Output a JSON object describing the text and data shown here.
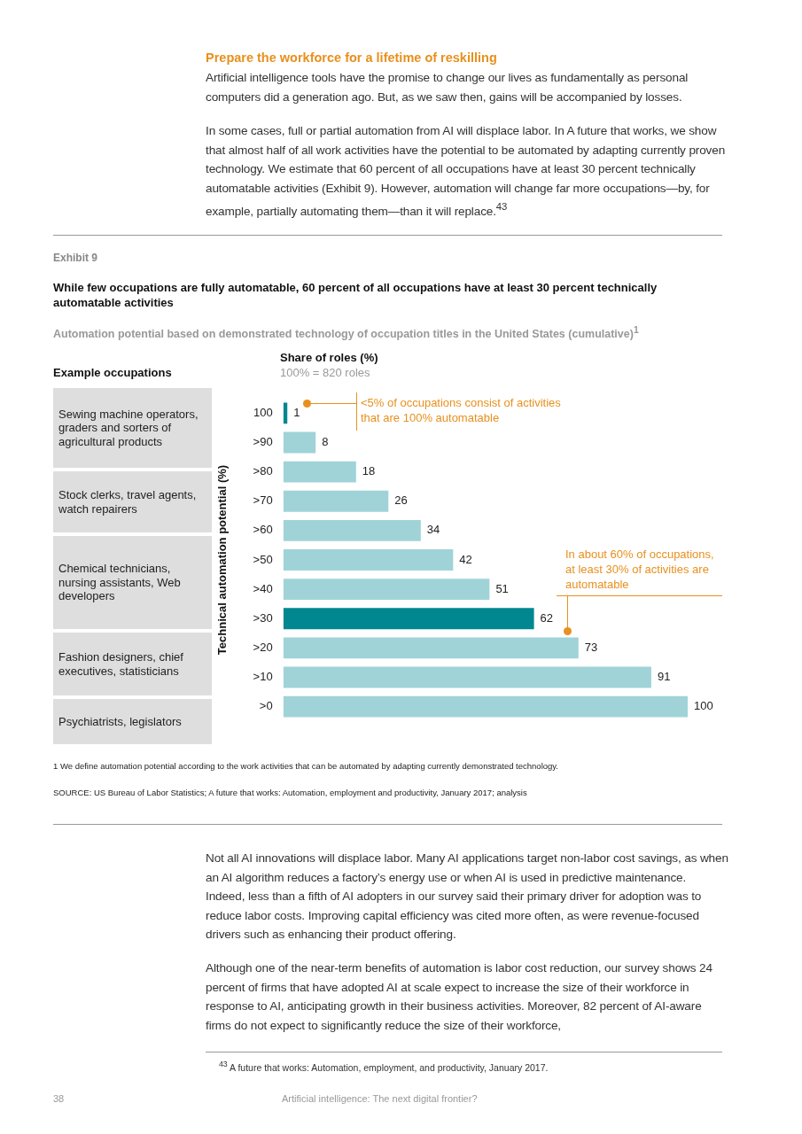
{
  "chart_data": {
    "type": "bar",
    "orientation": "horizontal",
    "title": "While few occupations are fully automatable, 60 percent of all occupations have at least 30 percent technically automatable activities",
    "subtitle": "Automation potential based on demonstrated technology of occupation titles in the United States (cumulative)$^{1}$",
    "ylabel": "Technical automation potential (%)",
    "categories": [
      "100",
      ">90",
      ">80",
      ">70",
      ">60",
      ">50",
      ">40",
      ">30",
      ">20",
      ">10",
      ">0"
    ],
    "values": [
      1,
      8,
      18,
      26,
      34,
      42,
      51,
      62,
      73,
      91,
      100
    ],
    "colors": [
      "#00878f",
      "#9fd3d8",
      "#9fd3d8",
      "#9fd3d8",
      "#9fd3d8",
      "#9fd3d8",
      "#9fd3d8",
      "#00878f",
      "#9fd3d8",
      "#9fd3d8",
      "#9fd3d8"
    ],
    "data_labels": true,
    "annotations": [
      "Prepare the workforce for a lifetime of reskilling",
      "Artificial intelligence tools have the promise to change our lives as fundamentally as personal computers did a generation ago. But, as we saw then, gains will be accompanied by losses.",
      "In some cases, full or partial automation from AI will displace labor. In A future that works, we show that almost half of all work activities have the potential to be automated by adapting currently proven technology. We estimate that 60 percent of all occupations have at least 30 percent technically automatable activities (Exhibit 9). However, automation will change far more occupations—by, for example, partially automating them—than it will replace.$^{43}$",
      "Exhibit 9",
      "Example occupations",
      "Sewing machine operators, graders and sorters of agricultural products",
      "Stock clerks, travel agents, watch repairers",
      "Chemical technicians, nursing assistants, Web developers",
      "Fashion designers, chief executives, statisticians",
      "Psychiatrists, legislators",
      "Share of roles (%)",
      "100% = 820 roles",
      "<5% of occupations consist of activities that are 100% automatable",
      "In about 60% of occupations, at least 30% of activities are automatable",
      "1  We define automation potential according to the work activities that can be automated by adapting currently demonstrated technology.",
      "SOURCE:  US Bureau of Labor Statistics; A future that works: Automation, employment and productivity, January 2017; analysis",
      "Not all AI innovations will displace labor. Many AI applications target non-labor cost savings, as when an AI algorithm reduces a factory’s energy use or when AI is used in predictive maintenance. Indeed, less than a fifth of AI adopters in our survey said their primary driver for adoption was to reduce labor costs. Improving capital efficiency was cited more often, as were revenue-focused drivers such as enhancing their product offering.",
      "Although one of the near-term benefits of automation is labor cost reduction, our survey shows 24 percent of firms that have adopted AI at scale expect to increase the size of their workforce in response to AI, anticipating growth in their business activities. Moreover, 82 percent of AI-aware firms do not expect to significantly reduce the size of their workforce,",
      "$^{43}$  A future that works: Automation, employment, and productivity, January 2017.",
      "38",
      "Artificial intelligence: The next digital frontier?"
    ]
  }
}
